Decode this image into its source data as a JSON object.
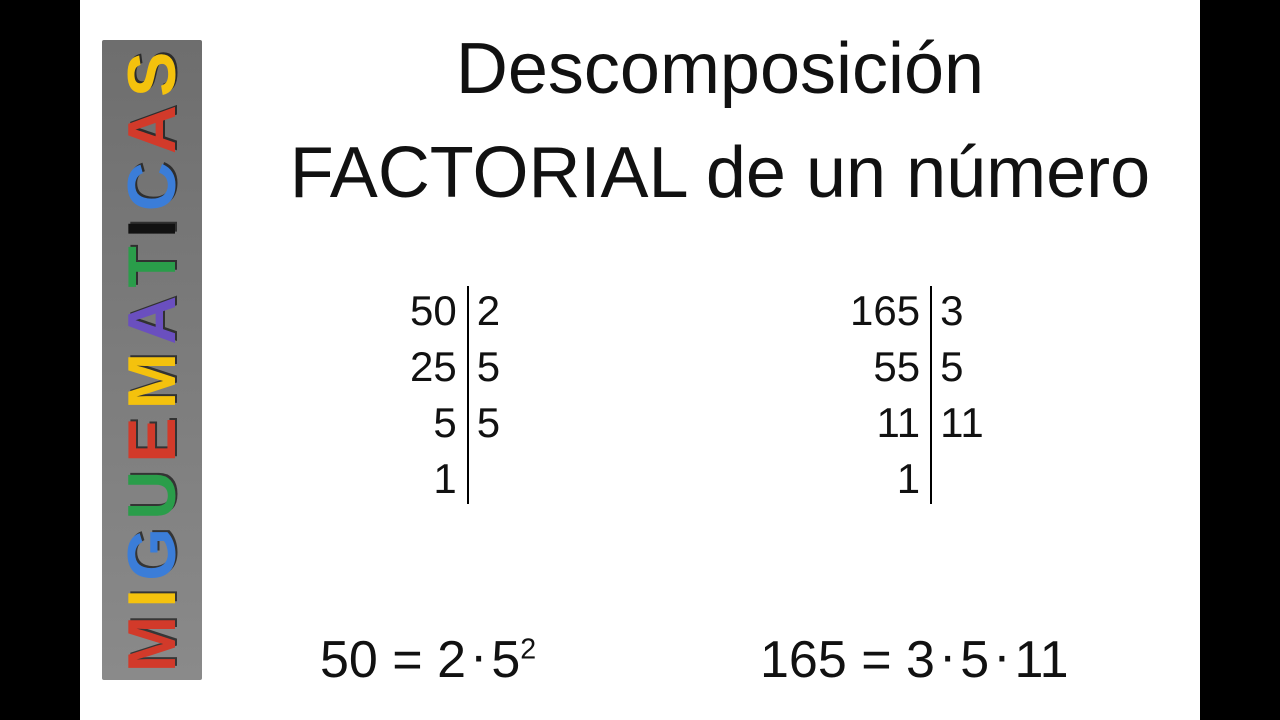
{
  "colors": {
    "page_bg": "#000000",
    "stage_bg": "#ffffff",
    "text": "#111111",
    "divider": "#000000"
  },
  "typography": {
    "title_fontsize_pt": 54,
    "table_fontsize_pt": 32,
    "result_fontsize_pt": 40,
    "font_family": "Helvetica Neue / Arial"
  },
  "logo": {
    "text": "MIGUEMATICAS",
    "letter_colors": [
      "#d23a2a",
      "#f4c20d",
      "#3b7dd8",
      "#2a9d4a",
      "#d23a2a",
      "#f4c20d",
      "#6a4fbf",
      "#2a9d4a",
      "#111111",
      "#3b7dd8",
      "#d23a2a",
      "#f4c20d"
    ]
  },
  "title": {
    "line1": "Descomposición",
    "line2": "FACTORIAL de un número"
  },
  "factor_left": {
    "rows": [
      {
        "q": "50",
        "f": "2"
      },
      {
        "q": "25",
        "f": "5"
      },
      {
        "q": "5",
        "f": "5"
      },
      {
        "q": "1",
        "f": ""
      }
    ],
    "result_lhs": "50",
    "result_eq": "=",
    "result_rhs_parts": [
      "2",
      "·",
      "5"
    ],
    "result_rhs_exp": "2"
  },
  "factor_right": {
    "rows": [
      {
        "q": "165",
        "f": "3"
      },
      {
        "q": "55",
        "f": "5"
      },
      {
        "q": "11",
        "f": "11"
      },
      {
        "q": "1",
        "f": ""
      }
    ],
    "result_lhs": "165",
    "result_eq": "=",
    "result_rhs_parts": [
      "3",
      "·",
      "5",
      "·",
      "11"
    ],
    "result_rhs_exp": ""
  }
}
